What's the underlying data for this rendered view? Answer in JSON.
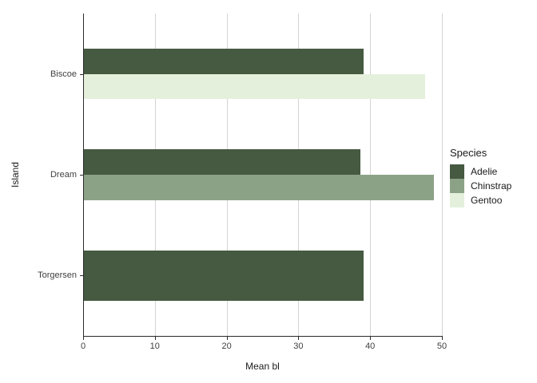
{
  "chart_data": {
    "type": "bar",
    "orientation": "horizontal",
    "title": "",
    "xlabel": "Mean bl",
    "ylabel": "Island",
    "xlim": [
      0,
      50
    ],
    "xticks": [
      0,
      10,
      20,
      30,
      40,
      50
    ],
    "categories": [
      "Biscoe",
      "Dream",
      "Torgersen"
    ],
    "grid": "vertical-major-only",
    "legend": {
      "title": "Species",
      "position": "right",
      "entries": [
        "Adelie",
        "Chinstrap",
        "Gentoo"
      ]
    },
    "series": [
      {
        "name": "Adelie",
        "color": "#465941",
        "values": [
          38.98,
          38.5,
          38.95
        ]
      },
      {
        "name": "Chinstrap",
        "color": "#8CA287",
        "values": [
          null,
          48.83,
          null
        ]
      },
      {
        "name": "Gentoo",
        "color": "#E4F0DC",
        "values": [
          47.5,
          null,
          null
        ]
      }
    ],
    "colors": {
      "background": "#FFFFFF",
      "gridline": "#D4D4D4",
      "axis_line": "#2B2B2B",
      "tick_text": "#404040",
      "title_text": "#1A1A1A"
    }
  }
}
